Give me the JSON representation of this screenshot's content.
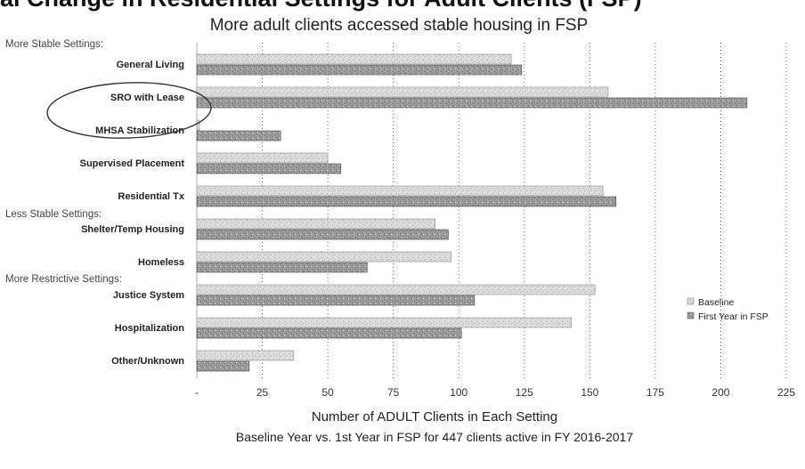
{
  "header": {
    "cut_title": "al Change in Residential Settings for Adult Clients (FSP)"
  },
  "chart_data": {
    "type": "bar",
    "orientation": "horizontal",
    "title": "More adult clients accessed stable housing in FSP",
    "xlabel": "Number of ADULT Clients in Each Setting",
    "subtitle": "Baseline Year vs. 1st Year in FSP for 447 clients active in FY 2016-2017",
    "xlim": [
      0,
      225
    ],
    "x_ticks": [
      "-",
      "25",
      "50",
      "75",
      "100",
      "125",
      "150",
      "175",
      "200",
      "225"
    ],
    "groups": [
      {
        "label": "More Stable Settings:",
        "first_category": 0
      },
      {
        "label": "Less Stable Settings:",
        "first_category": 5
      },
      {
        "label": "More Restrictive Settings:",
        "first_category": 7
      }
    ],
    "categories": [
      "General Living",
      "SRO with Lease",
      "MHSA Stabilization",
      "Supervised Placement",
      "Residential Tx",
      "Shelter/Temp Housing",
      "Homeless",
      "Justice System",
      "Hospitalization",
      "Other/Unknown"
    ],
    "highlighted_category": "SRO with Lease",
    "series": [
      {
        "name": "Baseline",
        "color": "#d4d4d4",
        "values": [
          120,
          157,
          1,
          50,
          155,
          91,
          97,
          152,
          143,
          37
        ]
      },
      {
        "name": "First Year in FSP",
        "color": "#8a8a8a",
        "values": [
          124,
          210,
          32,
          55,
          160,
          96,
          65,
          106,
          101,
          20
        ]
      }
    ],
    "grid": true,
    "legend_position": "right"
  }
}
